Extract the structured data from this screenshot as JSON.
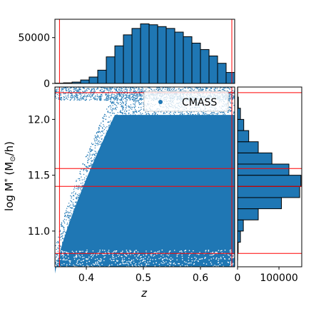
{
  "colors": {
    "series": "#1f77b4",
    "guide_lines": "#ff0000",
    "edge": "#000000"
  },
  "chart_data": [
    {
      "type": "scatter",
      "name": "main",
      "xlabel": "z",
      "ylabel": "log M* (M⊙/h)",
      "ylabel_parts": {
        "base": "log M",
        "sup": "*",
        "open": " (M",
        "sub": "⊙",
        "close": "/h)"
      },
      "xlim": [
        0.345,
        0.66
      ],
      "ylim": [
        10.68,
        12.29
      ],
      "xticks": [
        0.4,
        0.5,
        0.6
      ],
      "xtick_labels": [
        "0.4",
        "0.5",
        "0.6"
      ],
      "yticks": [
        11.0,
        11.5,
        12.0
      ],
      "ytick_labels": [
        "11.0",
        "11.5",
        "12.0"
      ],
      "legend": {
        "label": "CMASS",
        "placement": "upper-right"
      },
      "guide_lines": {
        "vertical_x": [
          0.353,
          0.655
        ],
        "horizontal_y": [
          10.8,
          11.4,
          11.56,
          12.24
        ]
      },
      "description_of_points": "dense CMASS sample; lower edge of mass rises from ~10.7 near z=0.35 to ~12.1 near z=0.44 on left side, filling most of panel"
    },
    {
      "type": "bar",
      "name": "top_histogram",
      "orientation": "vertical",
      "xlim": [
        0.345,
        0.66
      ],
      "ylim": [
        0,
        70000
      ],
      "yticks": [
        0,
        50000
      ],
      "ytick_labels": [
        "0",
        "50000"
      ],
      "bin_edges": [
        0.345,
        0.36,
        0.375,
        0.39,
        0.405,
        0.42,
        0.435,
        0.45,
        0.465,
        0.48,
        0.495,
        0.51,
        0.525,
        0.54,
        0.555,
        0.57,
        0.585,
        0.6,
        0.615,
        0.63,
        0.645,
        0.66
      ],
      "values": [
        300,
        700,
        1500,
        3800,
        7000,
        14500,
        29000,
        41000,
        53000,
        60000,
        65000,
        64000,
        62000,
        60000,
        56000,
        51000,
        44000,
        37000,
        30000,
        22000,
        12000
      ],
      "guide_lines": {
        "vertical_x": [
          0.353,
          0.655
        ]
      }
    },
    {
      "type": "bar",
      "name": "right_histogram",
      "orientation": "horizontal",
      "ylim": [
        10.68,
        12.29
      ],
      "xlim": [
        0,
        155000
      ],
      "xticks": [
        0,
        100000
      ],
      "xtick_labels": [
        "0",
        "100000"
      ],
      "bin_edges": [
        10.68,
        10.74,
        10.8,
        10.9,
        11.0,
        11.1,
        11.2,
        11.3,
        11.4,
        11.5,
        11.6,
        11.7,
        11.8,
        11.9,
        12.0,
        12.1,
        12.2,
        12.29
      ],
      "values": [
        0,
        300,
        1500,
        7000,
        14000,
        50000,
        106000,
        150000,
        153000,
        124000,
        83000,
        50000,
        27000,
        15000,
        7000,
        2000,
        300
      ],
      "guide_lines": {
        "horizontal_y": [
          10.8,
          11.4,
          11.56,
          12.24
        ]
      }
    }
  ]
}
